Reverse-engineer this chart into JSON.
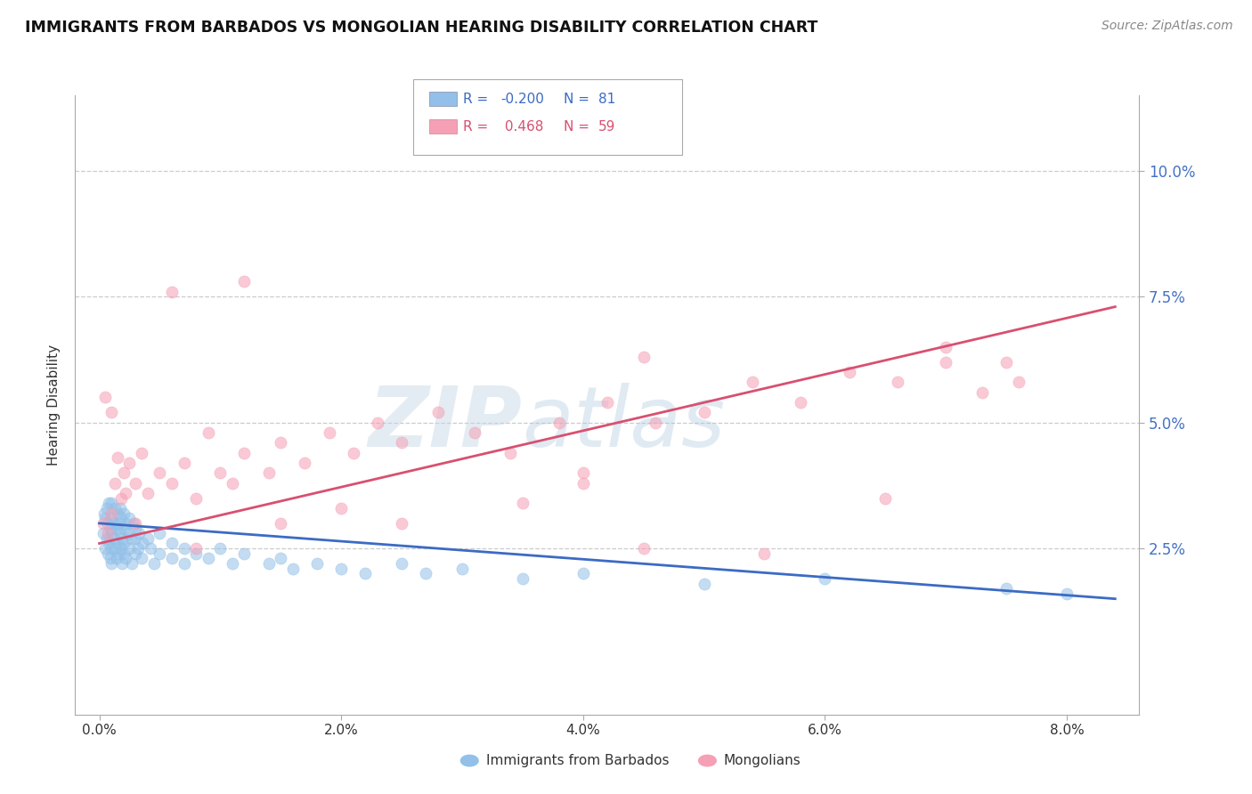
{
  "title": "IMMIGRANTS FROM BARBADOS VS MONGOLIAN HEARING DISABILITY CORRELATION CHART",
  "source": "Source: ZipAtlas.com",
  "ylabel": "Hearing Disability",
  "legend_blue_r": "-0.200",
  "legend_blue_n": "81",
  "legend_pink_r": "0.468",
  "legend_pink_n": "59",
  "legend_label_blue": "Immigrants from Barbados",
  "legend_label_pink": "Mongolians",
  "yticks": [
    "2.5%",
    "5.0%",
    "7.5%",
    "10.0%"
  ],
  "ytick_vals": [
    0.025,
    0.05,
    0.075,
    0.1
  ],
  "xtick_vals": [
    0.0,
    0.02,
    0.04,
    0.06,
    0.08
  ],
  "xtick_labels": [
    "0.0%",
    "2.0%",
    "4.0%",
    "6.0%",
    "8.0%"
  ],
  "xlim": [
    -0.002,
    0.086
  ],
  "ylim": [
    -0.008,
    0.115
  ],
  "blue_color": "#92C0E8",
  "pink_color": "#F5A0B5",
  "blue_line_color": "#3B6BC4",
  "pink_line_color": "#D85070",
  "watermark_zip": "ZIP",
  "watermark_atlas": "atlas",
  "background_color": "#FFFFFF",
  "blue_scatter_x": [
    0.0003,
    0.0004,
    0.0005,
    0.0005,
    0.0006,
    0.0006,
    0.0007,
    0.0007,
    0.0008,
    0.0008,
    0.0009,
    0.0009,
    0.001,
    0.001,
    0.001,
    0.001,
    0.001,
    0.0012,
    0.0012,
    0.0013,
    0.0013,
    0.0014,
    0.0014,
    0.0015,
    0.0015,
    0.0016,
    0.0016,
    0.0017,
    0.0017,
    0.0018,
    0.0018,
    0.0019,
    0.0019,
    0.002,
    0.002,
    0.002,
    0.002,
    0.0022,
    0.0022,
    0.0024,
    0.0025,
    0.0025,
    0.0026,
    0.0027,
    0.0028,
    0.003,
    0.003,
    0.003,
    0.0032,
    0.0033,
    0.0035,
    0.0036,
    0.004,
    0.0042,
    0.0045,
    0.005,
    0.005,
    0.006,
    0.006,
    0.007,
    0.007,
    0.008,
    0.009,
    0.01,
    0.011,
    0.012,
    0.014,
    0.015,
    0.016,
    0.018,
    0.02,
    0.022,
    0.025,
    0.027,
    0.03,
    0.035,
    0.04,
    0.05,
    0.06,
    0.075,
    0.08
  ],
  "blue_scatter_y": [
    0.028,
    0.032,
    0.025,
    0.031,
    0.027,
    0.033,
    0.024,
    0.03,
    0.026,
    0.034,
    0.023,
    0.029,
    0.028,
    0.031,
    0.025,
    0.022,
    0.034,
    0.03,
    0.027,
    0.033,
    0.025,
    0.029,
    0.023,
    0.032,
    0.026,
    0.03,
    0.024,
    0.028,
    0.033,
    0.025,
    0.031,
    0.027,
    0.022,
    0.029,
    0.032,
    0.024,
    0.026,
    0.03,
    0.023,
    0.028,
    0.031,
    0.025,
    0.027,
    0.022,
    0.03,
    0.029,
    0.024,
    0.027,
    0.025,
    0.028,
    0.023,
    0.026,
    0.027,
    0.025,
    0.022,
    0.028,
    0.024,
    0.026,
    0.023,
    0.025,
    0.022,
    0.024,
    0.023,
    0.025,
    0.022,
    0.024,
    0.022,
    0.023,
    0.021,
    0.022,
    0.021,
    0.02,
    0.022,
    0.02,
    0.021,
    0.019,
    0.02,
    0.018,
    0.019,
    0.017,
    0.016
  ],
  "pink_scatter_x": [
    0.0003,
    0.0005,
    0.0007,
    0.001,
    0.001,
    0.0013,
    0.0015,
    0.0018,
    0.002,
    0.0022,
    0.0025,
    0.003,
    0.003,
    0.0035,
    0.004,
    0.005,
    0.006,
    0.007,
    0.008,
    0.009,
    0.01,
    0.011,
    0.012,
    0.014,
    0.015,
    0.017,
    0.019,
    0.021,
    0.023,
    0.025,
    0.028,
    0.031,
    0.034,
    0.038,
    0.042,
    0.046,
    0.05,
    0.054,
    0.058,
    0.062,
    0.066,
    0.07,
    0.073,
    0.076,
    0.04,
    0.02,
    0.008,
    0.015,
    0.025,
    0.035,
    0.045,
    0.055,
    0.065,
    0.075,
    0.04,
    0.045,
    0.006,
    0.012,
    0.07
  ],
  "pink_scatter_y": [
    0.03,
    0.055,
    0.028,
    0.052,
    0.032,
    0.038,
    0.043,
    0.035,
    0.04,
    0.036,
    0.042,
    0.038,
    0.03,
    0.044,
    0.036,
    0.04,
    0.038,
    0.042,
    0.035,
    0.048,
    0.04,
    0.038,
    0.044,
    0.04,
    0.046,
    0.042,
    0.048,
    0.044,
    0.05,
    0.046,
    0.052,
    0.048,
    0.044,
    0.05,
    0.054,
    0.05,
    0.052,
    0.058,
    0.054,
    0.06,
    0.058,
    0.062,
    0.056,
    0.058,
    0.04,
    0.033,
    0.025,
    0.03,
    0.03,
    0.034,
    0.025,
    0.024,
    0.035,
    0.062,
    0.038,
    0.063,
    0.076,
    0.078,
    0.065
  ],
  "blue_line_x": [
    0.0,
    0.084
  ],
  "blue_line_y": [
    0.03,
    0.015
  ],
  "pink_line_x": [
    0.0,
    0.084
  ],
  "pink_line_y": [
    0.026,
    0.073
  ]
}
